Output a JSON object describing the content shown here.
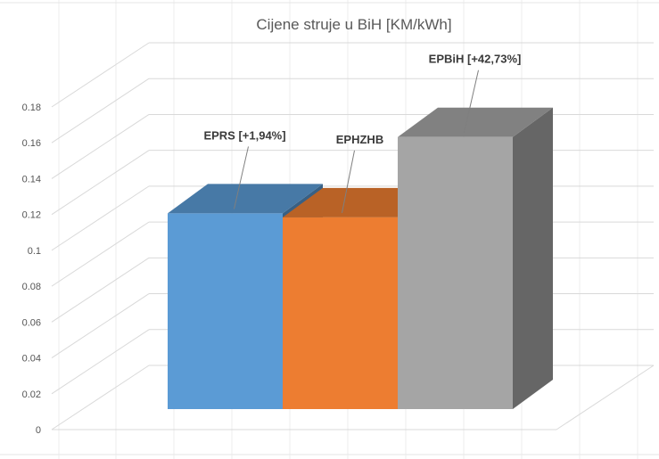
{
  "chart_data": {
    "type": "bar",
    "title": "Cijene struje u BiH [KM/kWh]",
    "categories": [
      "EPRS",
      "EPHZHB",
      "EPBiH"
    ],
    "values": [
      0.1194,
      0.117,
      0.166
    ],
    "data_labels": [
      "EPRS [+1,94%]",
      "EPHZHB",
      "EPBiH [+42,73%]"
    ],
    "colors": [
      "#5b9bd5",
      "#ed7d31",
      "#a5a5a5"
    ],
    "yticks": [
      "0",
      "0.02",
      "0.04",
      "0.06",
      "0.08",
      "0.1",
      "0.12",
      "0.14",
      "0.16",
      "0.18"
    ],
    "ylim": [
      0,
      0.18
    ],
    "grid": true,
    "three_d": true,
    "legend": "none",
    "xlabel": "",
    "ylabel": ""
  }
}
